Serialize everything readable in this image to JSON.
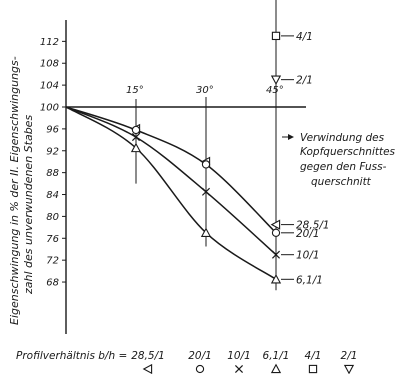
{
  "chart_data": {
    "type": "line",
    "title": "",
    "ylabel_line1": "Eigenschwingung in % der II. Eigenschwingungs-",
    "ylabel_line2": "zahl des unverwundenen Stabes",
    "ylim": [
      66,
      114
    ],
    "y_ticks": [
      68,
      72,
      76,
      80,
      84,
      88,
      92,
      96,
      100,
      104,
      108,
      112
    ],
    "xlim": [
      0,
      45
    ],
    "x_angle_ticks": [
      "15°",
      "30°",
      "45°"
    ],
    "x_angle_values": [
      15,
      30,
      45
    ],
    "annotation_lines": [
      "Verwindung des",
      "Kopfquerschnittes",
      "gegen den Fuss-",
      "querschnitt"
    ],
    "ratio_axis_label": "Profilverhältnis  b/h =",
    "ratio_entries": [
      {
        "label": "28,5/1",
        "marker": "triangle-left"
      },
      {
        "label": "20/1",
        "marker": "circle"
      },
      {
        "label": "10/1",
        "marker": "cross"
      },
      {
        "label": "6,1/1",
        "marker": "triangle-up"
      },
      {
        "label": "4/1",
        "marker": "square"
      },
      {
        "label": "2/1",
        "marker": "triangle-down"
      }
    ],
    "series": [
      {
        "name": "28,5/1",
        "marker": "triangle-left",
        "x": [
          0,
          15,
          30,
          45
        ],
        "y": [
          100,
          96,
          90,
          78.5
        ]
      },
      {
        "name": "20/1",
        "marker": "circle",
        "x": [
          0,
          15,
          30,
          45
        ],
        "y": [
          100,
          95.8,
          89.5,
          77
        ]
      },
      {
        "name": "10/1",
        "marker": "cross",
        "x": [
          0,
          15,
          30,
          45
        ],
        "y": [
          100,
          94.5,
          84.5,
          73
        ]
      },
      {
        "name": "6,1/1",
        "marker": "triangle-up",
        "x": [
          0,
          15,
          30,
          45
        ],
        "y": [
          100,
          92.5,
          77,
          68.5
        ]
      },
      {
        "name": "4/1",
        "marker": "square",
        "x": [
          45
        ],
        "y": [
          113
        ]
      },
      {
        "name": "2/1",
        "marker": "triangle-down",
        "x": [
          45
        ],
        "y": [
          105
        ]
      }
    ],
    "end_labels": [
      {
        "label": "28,5/1",
        "y": 78.5
      },
      {
        "label": "20/1",
        "y": 77
      },
      {
        "label": "10/1",
        "y": 73
      },
      {
        "label": "6,1/1",
        "y": 68.5
      },
      {
        "label": "4/1",
        "y": 113
      },
      {
        "label": "2/1",
        "y": 105
      }
    ],
    "grid": false,
    "legend": "bottom"
  }
}
